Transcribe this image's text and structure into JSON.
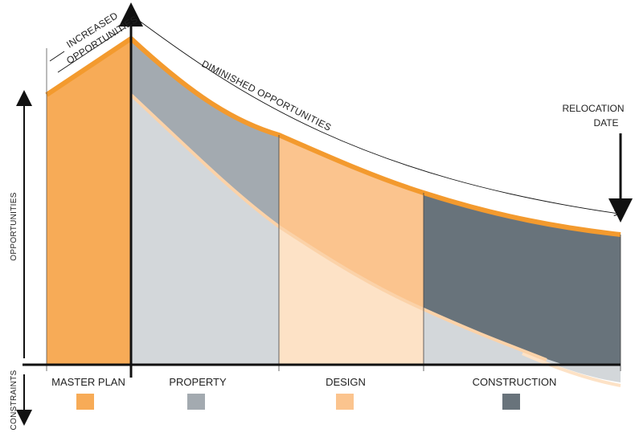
{
  "axes": {
    "y_upper_label": "OPPORTUNITIES",
    "y_lower_label": "CONSTRAINTS"
  },
  "annotations": {
    "increased_line1": "INCREASED",
    "increased_line2": "OPPORTUNITIES",
    "diminished": "DIMINISHED OPPORTUNITIES",
    "relocation_line1": "RELOCATION",
    "relocation_line2": "DATE"
  },
  "phases": [
    {
      "label": "MASTER PLAN",
      "color": "#f7ab57"
    },
    {
      "label": "PROPERTY",
      "color": "#a3aab0"
    },
    {
      "label": "DESIGN",
      "color": "#fbc48e"
    },
    {
      "label": "CONSTRUCTION",
      "color": "#68737b"
    }
  ],
  "colors": {
    "orange_band": "#f39a2e",
    "light_gray": "#d3d7da",
    "light_peach": "#fde2c6",
    "axis": "#111111"
  }
}
